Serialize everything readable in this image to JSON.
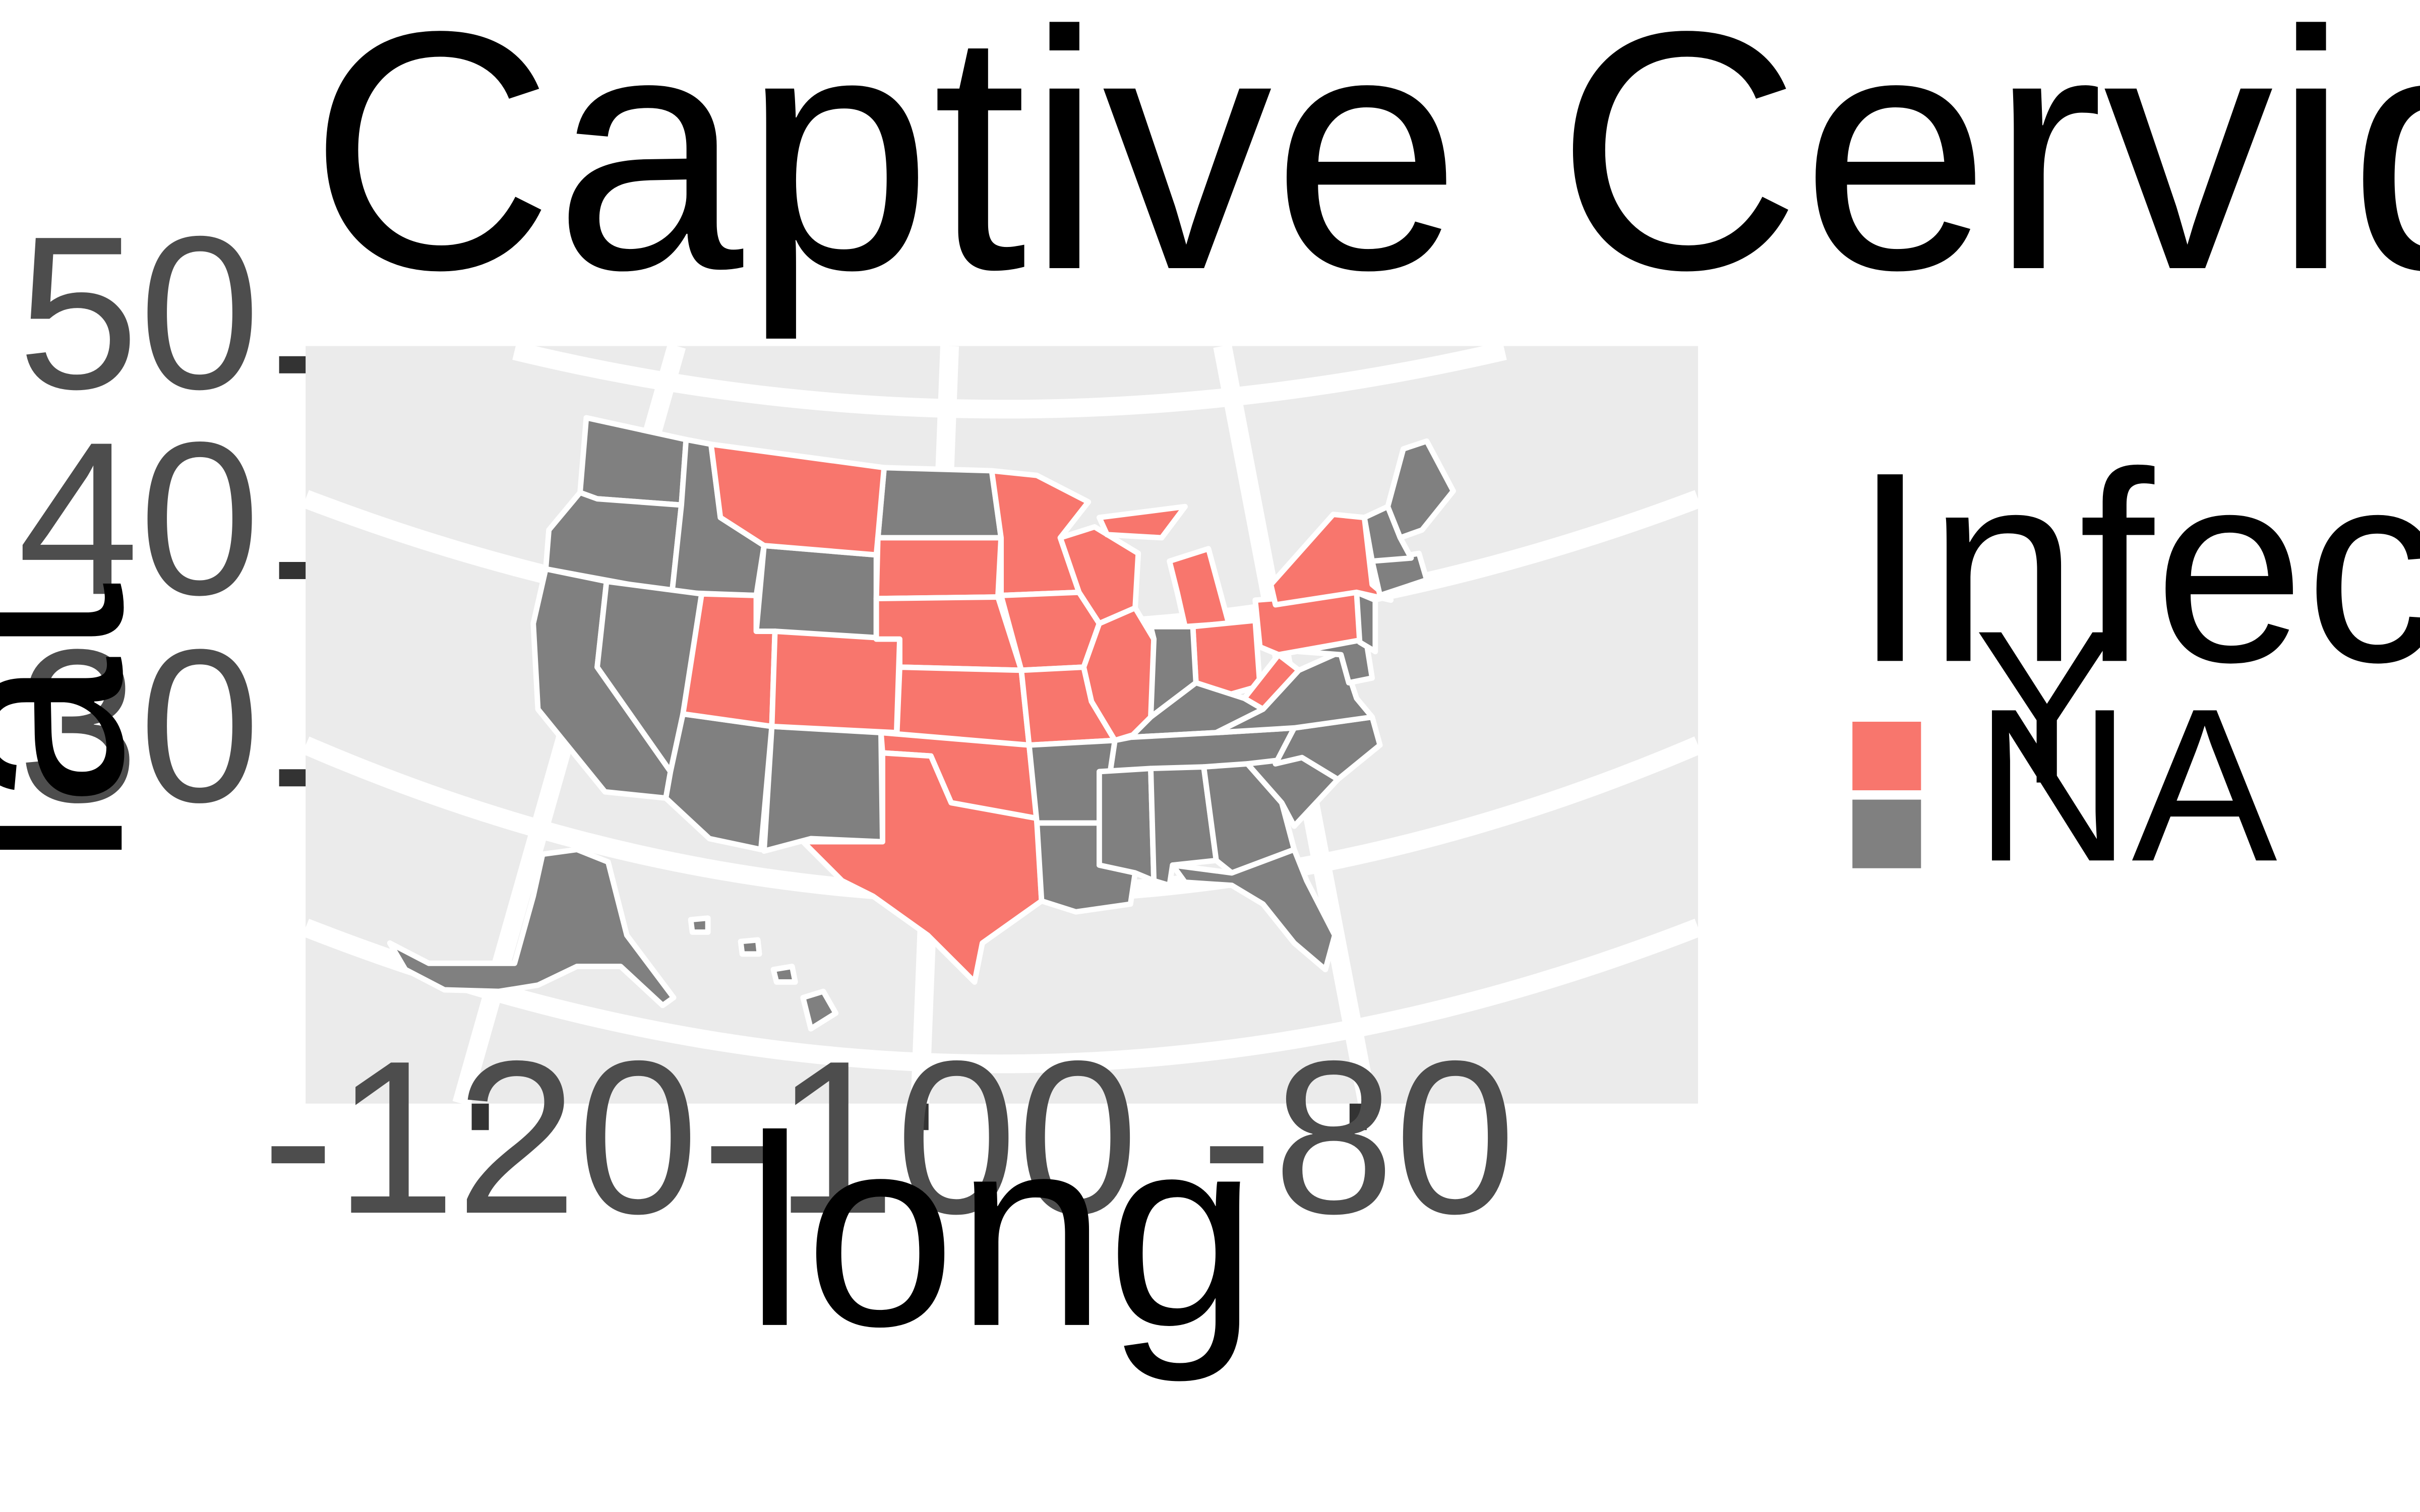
{
  "title": "Captive Cervid Infections",
  "x_axis": {
    "title": "long",
    "ticks": [
      "-120",
      "-100",
      "-80"
    ],
    "range": [
      -128,
      -64.4
    ]
  },
  "y_axis": {
    "title": "lat",
    "ticks": [
      "50",
      "40",
      "30"
    ],
    "range": [
      14,
      50.7
    ]
  },
  "legend": {
    "title": "Infections?",
    "entries": [
      {
        "label": "Y",
        "color": "#F8766D"
      },
      {
        "label": "NA",
        "color": "#808080"
      }
    ]
  },
  "colors": {
    "infected": "#F8766D",
    "none": "#808080",
    "panel": "#EBEBEB",
    "grid": "#FFFFFF"
  },
  "map_data": {
    "infected_states": [
      "Montana",
      "Utah",
      "Colorado",
      "South Dakota",
      "Nebraska",
      "Kansas",
      "Oklahoma",
      "Texas",
      "Minnesota",
      "Iowa",
      "Missouri",
      "Wisconsin",
      "Illinois",
      "Michigan",
      "Ohio",
      "West Virginia",
      "Pennsylvania",
      "New York"
    ],
    "other_states": [
      "Washington",
      "Oregon",
      "California",
      "Idaho",
      "Nevada",
      "Arizona",
      "Wyoming",
      "New Mexico",
      "North Dakota",
      "Arkansas",
      "Louisiana",
      "Mississippi",
      "Indiana",
      "Kentucky",
      "Tennessee",
      "Alabama",
      "Georgia",
      "Florida",
      "South Carolina",
      "North Carolina",
      "Virginia",
      "Maryland",
      "Delaware",
      "New Jersey",
      "Connecticut",
      "Rhode Island",
      "Massachusetts",
      "Vermont",
      "New Hampshire",
      "Maine",
      "Alaska",
      "Hawaii"
    ]
  }
}
